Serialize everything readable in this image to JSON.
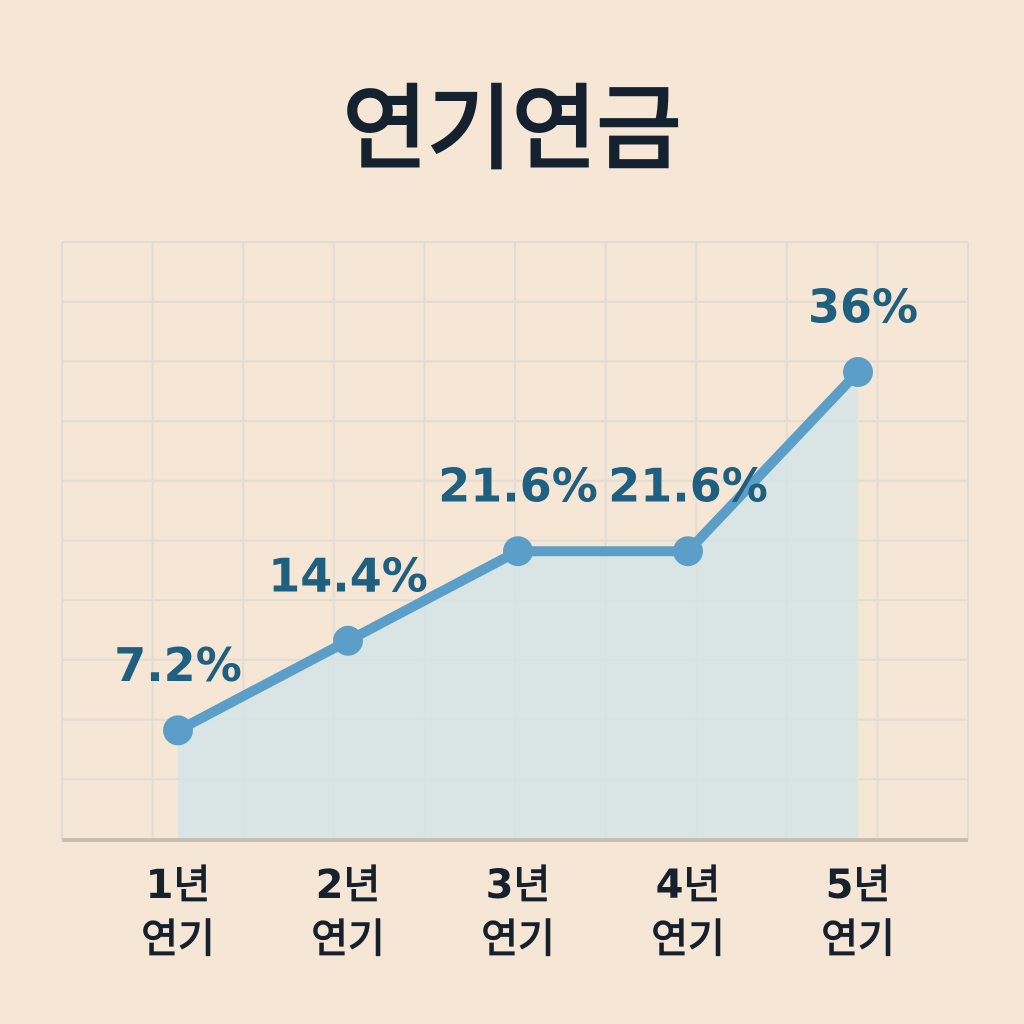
{
  "chart_data": {
    "type": "line",
    "title": "연기연금",
    "categories": [
      "1년\n연기",
      "2년\n연기",
      "3년\n연기",
      "4년\n연기",
      "5년\n연기"
    ],
    "values": [
      7.2,
      14.4,
      21.6,
      21.6,
      36
    ],
    "value_labels": [
      "7.2%",
      "14.4%",
      "21.6%",
      "21.6%",
      "36%"
    ],
    "color": "#5b9fc9",
    "fill": "#d3e4e6",
    "grid": true
  }
}
